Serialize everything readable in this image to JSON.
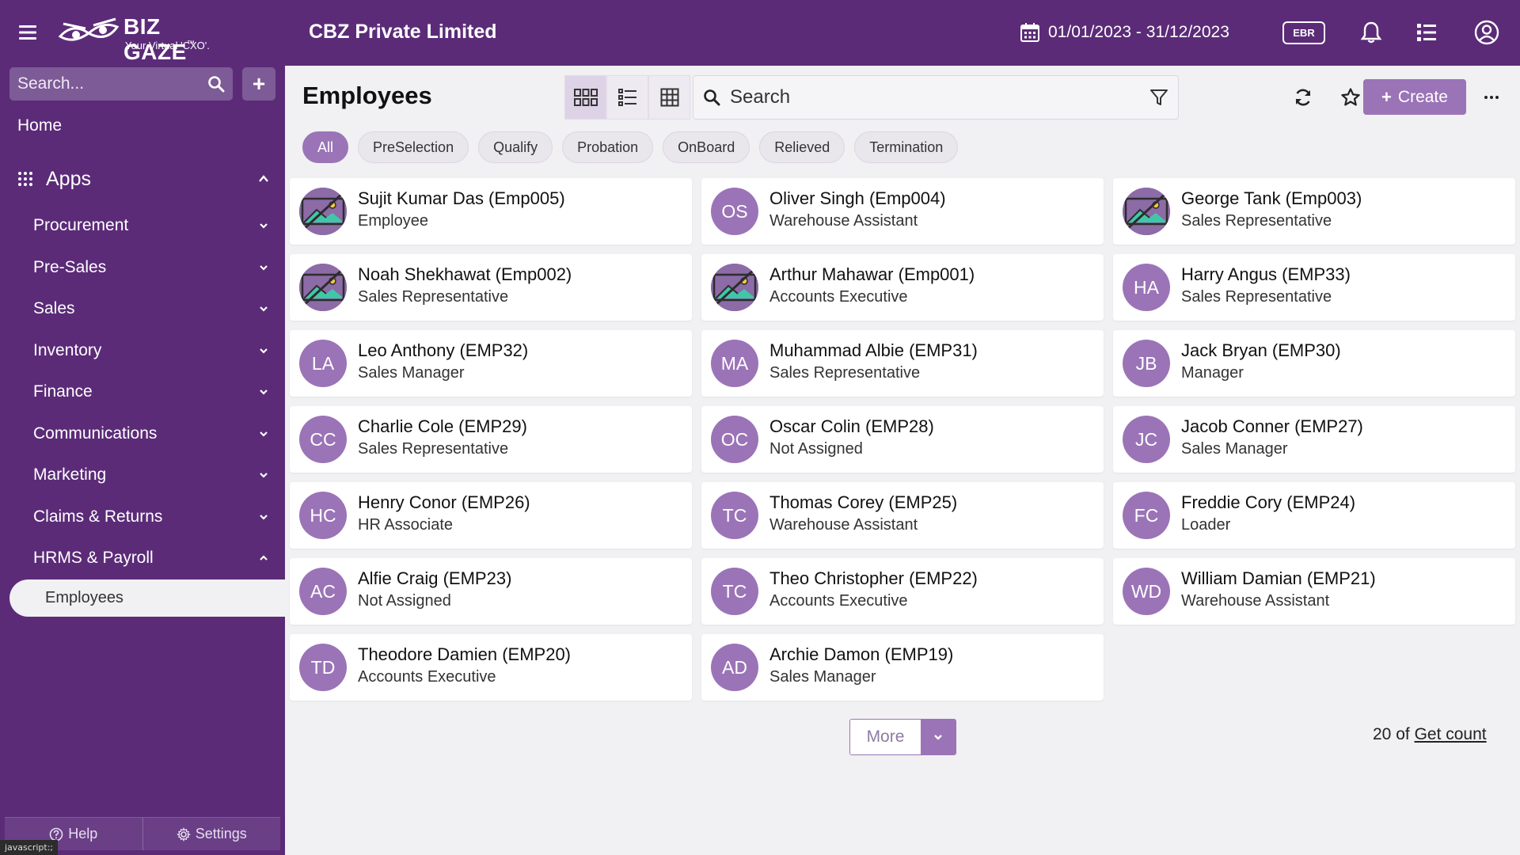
{
  "header": {
    "brand": "BIZ GAZE",
    "tagline": "Your Virtual 'CXO'.",
    "company": "CBZ Private Limited",
    "date_range": "01/01/2023 - 31/12/2023",
    "ebr_label": "EBR"
  },
  "sidebar": {
    "search_placeholder": "Search...",
    "home": "Home",
    "apps": "Apps",
    "items": [
      {
        "label": "Procurement"
      },
      {
        "label": "Pre-Sales"
      },
      {
        "label": "Sales"
      },
      {
        "label": "Inventory"
      },
      {
        "label": "Finance"
      },
      {
        "label": "Communications"
      },
      {
        "label": "Marketing"
      },
      {
        "label": "Claims & Returns"
      },
      {
        "label": "HRMS & Payroll"
      }
    ],
    "sub_item": "Employees",
    "help": "Help",
    "settings": "Settings"
  },
  "status_tip": "javascript:;",
  "main": {
    "title": "Employees",
    "search_placeholder": "Search",
    "create_label": "Create",
    "filters": [
      {
        "label": "All",
        "active": true
      },
      {
        "label": "PreSelection"
      },
      {
        "label": "Qualify"
      },
      {
        "label": "Probation"
      },
      {
        "label": "OnBoard"
      },
      {
        "label": "Relieved"
      },
      {
        "label": "Termination"
      }
    ],
    "employees": [
      {
        "name": "Sujit Kumar Das (Emp005)",
        "role": "Employee",
        "photo": true
      },
      {
        "name": "Oliver Singh (Emp004)",
        "role": "Warehouse Assistant",
        "initials": "OS"
      },
      {
        "name": "George Tank (Emp003)",
        "role": "Sales Representative",
        "photo": true
      },
      {
        "name": "Noah Shekhawat (Emp002)",
        "role": "Sales Representative",
        "photo": true
      },
      {
        "name": "Arthur Mahawar (Emp001)",
        "role": "Accounts Executive",
        "photo": true
      },
      {
        "name": "Harry Angus (EMP33)",
        "role": "Sales Representative",
        "initials": "HA"
      },
      {
        "name": "Leo Anthony (EMP32)",
        "role": "Sales Manager",
        "initials": "LA"
      },
      {
        "name": "Muhammad Albie (EMP31)",
        "role": "Sales Representative",
        "initials": "MA"
      },
      {
        "name": "Jack Bryan (EMP30)",
        "role": "Manager",
        "initials": "JB"
      },
      {
        "name": "Charlie Cole (EMP29)",
        "role": "Sales Representative",
        "initials": "CC"
      },
      {
        "name": "Oscar Colin (EMP28)",
        "role": "Not Assigned",
        "initials": "OC"
      },
      {
        "name": "Jacob Conner (EMP27)",
        "role": "Sales Manager",
        "initials": "JC"
      },
      {
        "name": "Henry Conor (EMP26)",
        "role": "HR Associate",
        "initials": "HC"
      },
      {
        "name": "Thomas Corey (EMP25)",
        "role": "Warehouse Assistant",
        "initials": "TC"
      },
      {
        "name": "Freddie Cory (EMP24)",
        "role": "Loader",
        "initials": "FC"
      },
      {
        "name": "Alfie Craig (EMP23)",
        "role": "Not Assigned",
        "initials": "AC"
      },
      {
        "name": "Theo Christopher (EMP22)",
        "role": "Accounts Executive",
        "initials": "TC"
      },
      {
        "name": "William Damian (EMP21)",
        "role": "Warehouse Assistant",
        "initials": "WD"
      },
      {
        "name": "Theodore Damien (EMP20)",
        "role": "Accounts Executive",
        "initials": "TD"
      },
      {
        "name": "Archie Damon (EMP19)",
        "role": "Sales Manager",
        "initials": "AD"
      }
    ],
    "more_label": "More",
    "count_prefix": "20 of",
    "get_count": "Get count"
  },
  "colors": {
    "primary": "#5b2b78",
    "accent": "#9b74b7",
    "background": "#f1f0f2"
  }
}
